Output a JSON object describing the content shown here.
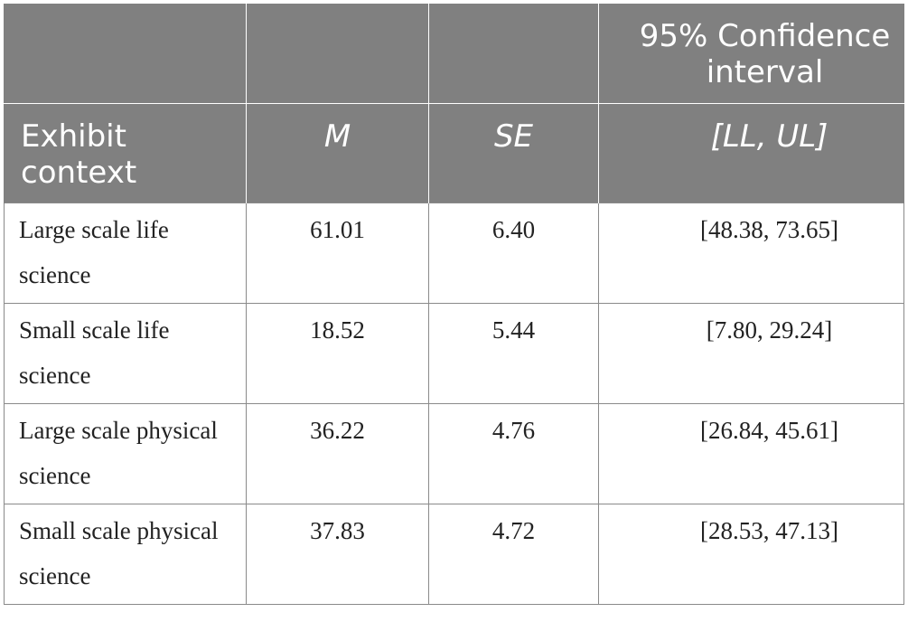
{
  "table": {
    "header_row1": [
      "",
      "",
      "",
      "95% Confidence interval"
    ],
    "header_row2": [
      "Exhibit context",
      "M",
      "SE",
      "[LL, UL]"
    ],
    "rows": [
      {
        "context": "Large scale life science",
        "m": "61.01",
        "se": "6.40",
        "ci": "[48.38, 73.65]"
      },
      {
        "context": "Small scale life science",
        "m": "18.52",
        "se": "5.44",
        "ci": "[7.80, 29.24]"
      },
      {
        "context": "Large scale physical science",
        "m": "36.22",
        "se": "4.76",
        "ci": "[26.84, 45.61]"
      },
      {
        "context": "Small scale physical science",
        "m": "37.83",
        "se": "4.72",
        "ci": "[28.53, 47.13]"
      }
    ]
  },
  "colors": {
    "header_background": "#808080",
    "header_text": "#ffffff",
    "border": "#8a8a8a"
  }
}
